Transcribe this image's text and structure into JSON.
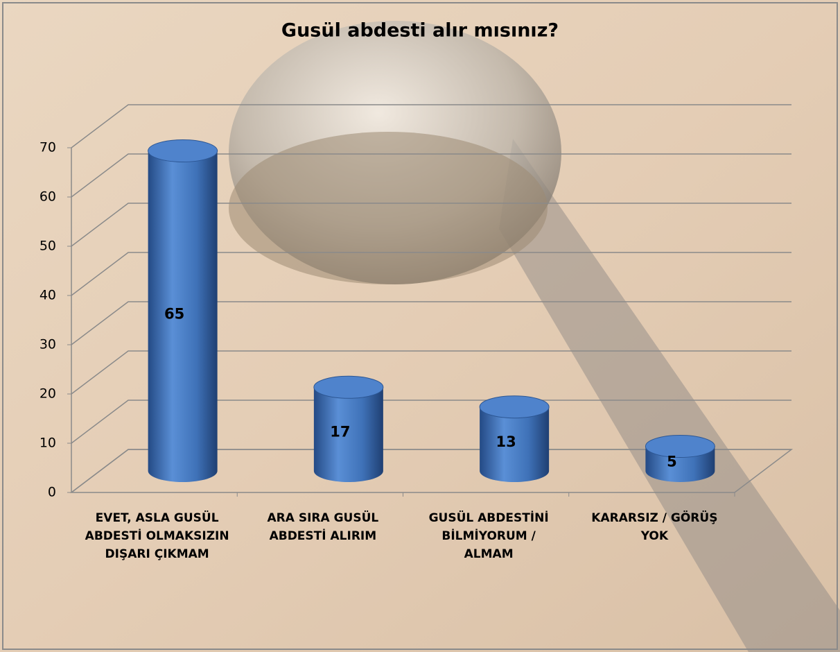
{
  "chart_data": {
    "type": "bar",
    "title": "Gusül abdesti alır mısınız?",
    "categories": [
      "EVET, ASLA GUSÜL ABDESTİ OLMAKSIZIN DIŞARI ÇIKMAM",
      "ARA SIRA GUSÜL ABDESTİ ALIRIM",
      "GUSÜL ABDESTİNİ BİLMİYORUM / ALMAM",
      "KARARSIZ / GÖRÜŞ YOK"
    ],
    "values": [
      65,
      17,
      13,
      5
    ],
    "color": "#3f72b8",
    "ylim": [
      0,
      70
    ],
    "yticks": [
      0,
      10,
      20,
      30,
      40,
      50,
      60,
      70
    ],
    "grid": true
  }
}
